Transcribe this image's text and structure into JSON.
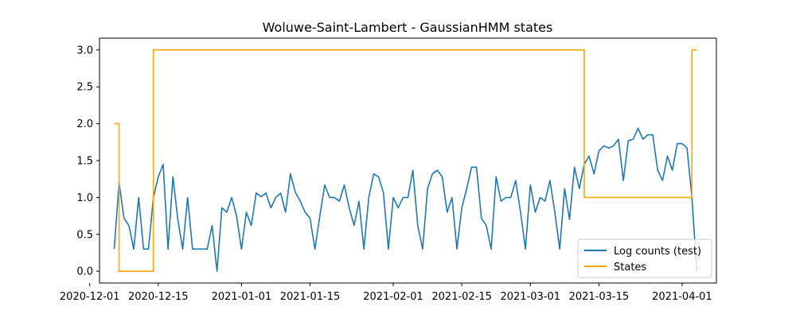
{
  "chart_data": {
    "type": "line",
    "title": "Woluwe-Saint-Lambert - GaussianHMM states",
    "xlabel": "",
    "ylabel": "",
    "x_range": [
      "2020-12-03",
      "2021-04-08"
    ],
    "ylim": [
      -0.16,
      3.16
    ],
    "x_ticks": [
      "2020-12-01",
      "2020-12-15",
      "2021-01-01",
      "2021-01-15",
      "2021-02-01",
      "2021-02-15",
      "2021-03-01",
      "2021-03-15",
      "2021-04-01"
    ],
    "y_ticks": [
      "0.0",
      "0.5",
      "1.0",
      "1.5",
      "2.0",
      "2.5",
      "3.0"
    ],
    "grid": false,
    "legend_position": "lower-right",
    "colors": {
      "log_counts": "#1f77b4",
      "states": "#ffa500"
    },
    "series": [
      {
        "name": "Log counts (test)",
        "start_date": "2020-12-06",
        "values": [
          0.3,
          1.2,
          0.72,
          0.62,
          0.3,
          1.0,
          0.3,
          0.3,
          1.0,
          1.28,
          1.45,
          0.3,
          1.28,
          0.7,
          0.3,
          1.0,
          0.3,
          0.3,
          0.3,
          0.3,
          0.62,
          0.0,
          0.86,
          0.8,
          1.0,
          0.75,
          0.3,
          0.8,
          0.62,
          1.06,
          1.01,
          1.06,
          0.86,
          1.0,
          1.06,
          0.8,
          1.32,
          1.07,
          0.95,
          0.8,
          0.72,
          0.3,
          0.75,
          1.17,
          1.0,
          1.0,
          0.95,
          1.17,
          0.86,
          0.62,
          0.95,
          0.3,
          1.0,
          1.32,
          1.28,
          1.06,
          0.3,
          1.0,
          0.86,
          1.0,
          1.0,
          1.37,
          0.62,
          0.3,
          1.12,
          1.32,
          1.37,
          1.28,
          0.8,
          1.0,
          0.3,
          0.86,
          1.12,
          1.41,
          1.41,
          0.72,
          0.62,
          0.3,
          1.28,
          0.95,
          1.0,
          1.0,
          1.23,
          0.8,
          0.3,
          1.17,
          0.8,
          1.0,
          0.95,
          1.23,
          0.8,
          0.3,
          1.12,
          0.7,
          1.41,
          1.12,
          1.45,
          1.56,
          1.32,
          1.63,
          1.7,
          1.67,
          1.7,
          1.79,
          1.23,
          1.77,
          1.79,
          1.94,
          1.79,
          1.85,
          1.85,
          1.37,
          1.23,
          1.56,
          1.37,
          1.73,
          1.73,
          1.67,
          1.0,
          0.0
        ]
      },
      {
        "name": "States",
        "segments": [
          {
            "from": "2020-12-06",
            "to": "2020-12-07",
            "state": 2
          },
          {
            "from": "2020-12-07",
            "to": "2020-12-14",
            "state": 0
          },
          {
            "from": "2020-12-14",
            "to": "2021-03-12",
            "state": 3
          },
          {
            "from": "2021-03-12",
            "to": "2021-04-03",
            "state": 1
          },
          {
            "from": "2021-04-03",
            "to": "2021-04-04",
            "state": 3
          }
        ]
      }
    ]
  }
}
